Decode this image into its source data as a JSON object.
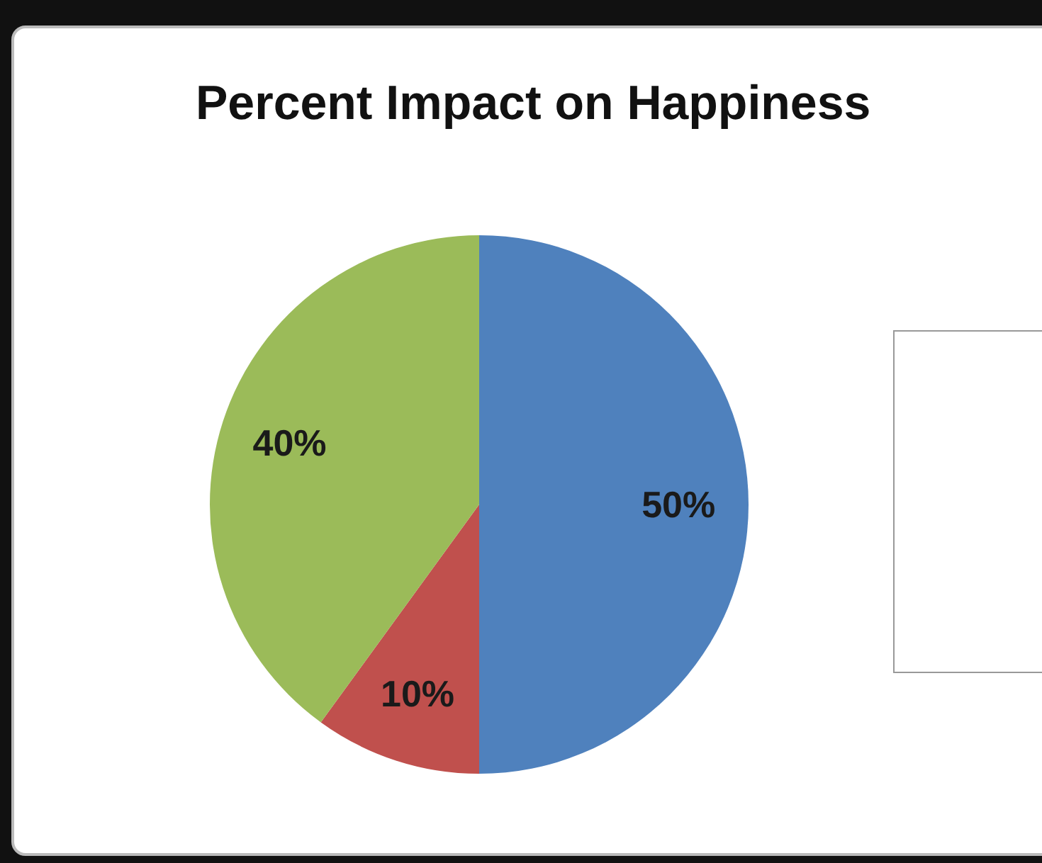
{
  "chart_data": {
    "type": "pie",
    "title": "Percent Impact on Happiness",
    "categories": [
      null,
      null,
      null
    ],
    "values": [
      50,
      10,
      40
    ],
    "colors": [
      "#4f81bd",
      "#c0504d",
      "#9bbb59"
    ],
    "value_labels": [
      "50%",
      "10%",
      "40%"
    ]
  }
}
